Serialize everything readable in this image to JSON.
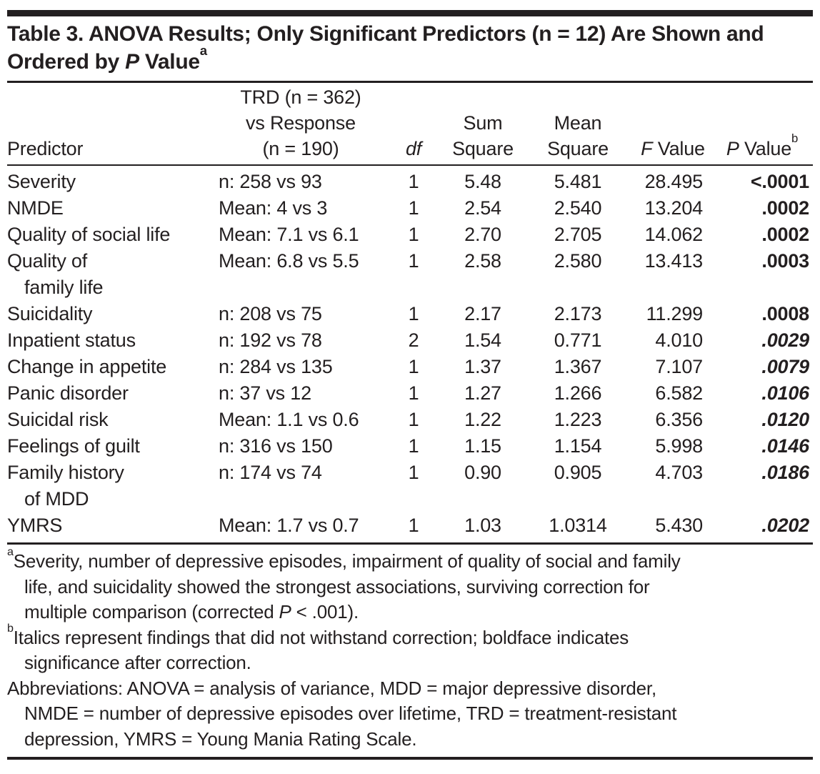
{
  "colors": {
    "text": "#231f20",
    "rule": "#231f20",
    "background": "#ffffff"
  },
  "document": {
    "title_parts": [
      {
        "t": "Table 3. ANOVA Results; Only Significant Predictors (n = 12) Are Shown and Ordered by "
      },
      {
        "t": "P",
        "i": true
      },
      {
        "t": " Value"
      },
      {
        "t": "a",
        "sup": true
      }
    ]
  },
  "table": {
    "columns": [
      {
        "id": "predictor",
        "label_lines": [
          [
            {
              "t": "Predictor"
            }
          ]
        ]
      },
      {
        "id": "trd-vs-response",
        "label_lines": [
          [
            {
              "t": "TRD (n = 362)"
            }
          ],
          [
            {
              "t": "vs Response"
            }
          ],
          [
            {
              "t": "(n = 190)"
            }
          ]
        ]
      },
      {
        "id": "df",
        "label_lines": [
          [
            {
              "t": "df",
              "i": true
            }
          ]
        ]
      },
      {
        "id": "sum-square",
        "label_lines": [
          [
            {
              "t": "Sum"
            }
          ],
          [
            {
              "t": "Square"
            }
          ]
        ]
      },
      {
        "id": "mean-square",
        "label_lines": [
          [
            {
              "t": "Mean"
            }
          ],
          [
            {
              "t": "Square"
            }
          ]
        ]
      },
      {
        "id": "f-value",
        "label_lines": [
          [
            {
              "t": "F",
              "i": true
            },
            {
              "t": " Value"
            }
          ]
        ]
      },
      {
        "id": "p-value",
        "label_lines": [
          [
            {
              "t": "P",
              "i": true
            },
            {
              "t": " Value"
            },
            {
              "t": "b",
              "sup": true
            }
          ]
        ]
      }
    ],
    "rows": [
      {
        "predictor_lines": [
          "Severity"
        ],
        "comparison": "n: 258 vs 93",
        "df": "1",
        "sum_square": "5.48",
        "mean_square": "5.481",
        "f_value": "28.495",
        "p_value": "<.0001",
        "p_value_style": "bold"
      },
      {
        "predictor_lines": [
          "NMDE"
        ],
        "comparison": "Mean: 4 vs 3",
        "df": "1",
        "sum_square": "2.54",
        "mean_square": "2.540",
        "f_value": "13.204",
        "p_value": ".0002",
        "p_value_style": "bold"
      },
      {
        "predictor_lines": [
          "Quality of social life"
        ],
        "comparison": "Mean: 7.1 vs 6.1",
        "df": "1",
        "sum_square": "2.70",
        "mean_square": "2.705",
        "f_value": "14.062",
        "p_value": ".0002",
        "p_value_style": "bold"
      },
      {
        "predictor_lines": [
          "Quality of",
          "family life"
        ],
        "comparison": "Mean: 6.8 vs 5.5",
        "df": "1",
        "sum_square": "2.58",
        "mean_square": "2.580",
        "f_value": "13.413",
        "p_value": ".0003",
        "p_value_style": "bold"
      },
      {
        "predictor_lines": [
          "Suicidality"
        ],
        "comparison": "n: 208 vs 75",
        "df": "1",
        "sum_square": "2.17",
        "mean_square": "2.173",
        "f_value": "11.299",
        "p_value": ".0008",
        "p_value_style": "bold"
      },
      {
        "predictor_lines": [
          "Inpatient status"
        ],
        "comparison": "n: 192 vs 78",
        "df": "2",
        "sum_square": "1.54",
        "mean_square": "0.771",
        "f_value": "4.010",
        "p_value": ".0029",
        "p_value_style": "bold-italic"
      },
      {
        "predictor_lines": [
          "Change in appetite"
        ],
        "comparison": "n: 284 vs 135",
        "df": "1",
        "sum_square": "1.37",
        "mean_square": "1.367",
        "f_value": "7.107",
        "p_value": ".0079",
        "p_value_style": "bold-italic"
      },
      {
        "predictor_lines": [
          "Panic disorder"
        ],
        "comparison": "n: 37 vs 12",
        "df": "1",
        "sum_square": "1.27",
        "mean_square": "1.266",
        "f_value": "6.582",
        "p_value": ".0106",
        "p_value_style": "bold-italic"
      },
      {
        "predictor_lines": [
          "Suicidal risk"
        ],
        "comparison": "Mean: 1.1 vs 0.6",
        "df": "1",
        "sum_square": "1.22",
        "mean_square": "1.223",
        "f_value": "6.356",
        "p_value": ".0120",
        "p_value_style": "bold-italic"
      },
      {
        "predictor_lines": [
          "Feelings of guilt"
        ],
        "comparison": "n: 316 vs 150",
        "df": "1",
        "sum_square": "1.15",
        "mean_square": "1.154",
        "f_value": "5.998",
        "p_value": ".0146",
        "p_value_style": "bold-italic"
      },
      {
        "predictor_lines": [
          "Family history",
          "of MDD"
        ],
        "comparison": "n: 174 vs 74",
        "df": "1",
        "sum_square": "0.90",
        "mean_square": "0.905",
        "f_value": "4.703",
        "p_value": ".0186",
        "p_value_style": "bold-italic"
      },
      {
        "predictor_lines": [
          "YMRS"
        ],
        "comparison": "Mean: 1.7 vs 0.7",
        "df": "1",
        "sum_square": "1.03",
        "mean_square": "1.0314",
        "f_value": "5.430",
        "p_value": ".0202",
        "p_value_style": "bold-italic"
      }
    ]
  },
  "footnotes": [
    {
      "name": "footnote-a",
      "marker": "a",
      "lines": [
        [
          {
            "t": "Severity, number of depressive episodes, impairment of quality of social and family"
          }
        ],
        [
          {
            "t": "life, and suicidality showed the strongest associations, surviving correction for"
          }
        ],
        [
          {
            "t": "multiple comparison (corrected "
          },
          {
            "t": "P",
            "i": true
          },
          {
            "t": " < .001)."
          }
        ]
      ]
    },
    {
      "name": "footnote-b",
      "marker": "b",
      "lines": [
        [
          {
            "t": "Italics represent findings that did not withstand correction; boldface indicates"
          }
        ],
        [
          {
            "t": "significance after correction."
          }
        ]
      ]
    },
    {
      "name": "footnote-abbreviations",
      "marker": "",
      "lines": [
        [
          {
            "t": "Abbreviations: ANOVA = analysis of variance, MDD = major depressive disorder,"
          }
        ],
        [
          {
            "t": "NMDE = number of depressive episodes over lifetime, TRD = treatment-resistant"
          }
        ],
        [
          {
            "t": "depression, YMRS = Young Mania Rating Scale."
          }
        ]
      ]
    }
  ]
}
